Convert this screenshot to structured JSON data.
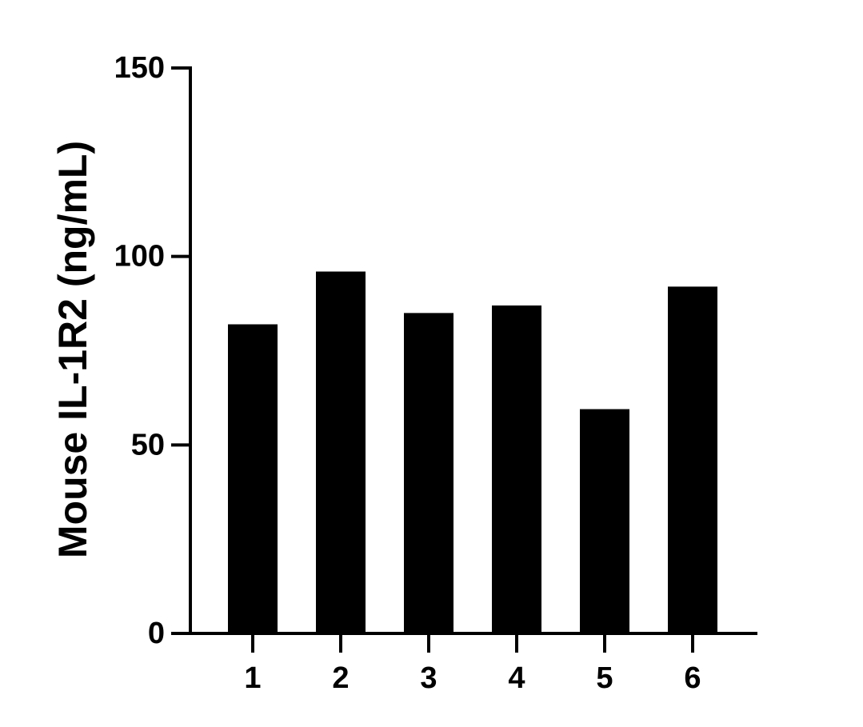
{
  "chart_data": {
    "type": "bar",
    "title": "",
    "xlabel": "",
    "ylabel": "Mouse IL-1R2 (ng/mL)",
    "categories": [
      "1",
      "2",
      "3",
      "4",
      "5",
      "6"
    ],
    "values": [
      82,
      96,
      85,
      87,
      59.5,
      92
    ],
    "ylim": [
      0,
      150
    ],
    "yticks": [
      "0",
      "50",
      "100",
      "150"
    ],
    "bar_color": "#000000",
    "axis_color": "#000000",
    "grid": false,
    "legend": "none"
  }
}
